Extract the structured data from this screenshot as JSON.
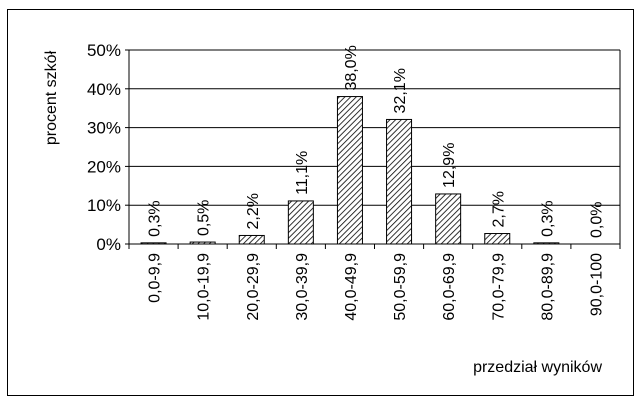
{
  "chart_data": {
    "type": "bar",
    "categories": [
      "0,0-9,9",
      "10,0-19,9",
      "20,0-29,9",
      "30,0-39,9",
      "40,0-49,9",
      "50,0-59,9",
      "60,0-69,9",
      "70,0-79,9",
      "80,0-89,9",
      "90,0-100"
    ],
    "values": [
      0.3,
      0.5,
      2.2,
      11.1,
      38.0,
      32.1,
      12.9,
      2.7,
      0.3,
      0.0
    ],
    "value_labels": [
      "0,3%",
      "0,5%",
      "2,2%",
      "11,1%",
      "38,0%",
      "32,1%",
      "12,9%",
      "2,7%",
      "0,3%",
      "0,0%"
    ],
    "ylim": [
      0,
      50
    ],
    "yticks": [
      0,
      10,
      20,
      30,
      40,
      50
    ],
    "ytick_labels": [
      "0%",
      "10%",
      "20%",
      "30%",
      "40%",
      "50%"
    ],
    "xlabel": "przedział wyników",
    "ylabel": "procent szkół",
    "grid": "horizontal",
    "bar_pattern": "diagonal-hatch",
    "colors": {
      "bar_fill": "#ffffff",
      "hatch": "#000000",
      "grid": "#000000",
      "frame": "#000000"
    }
  }
}
